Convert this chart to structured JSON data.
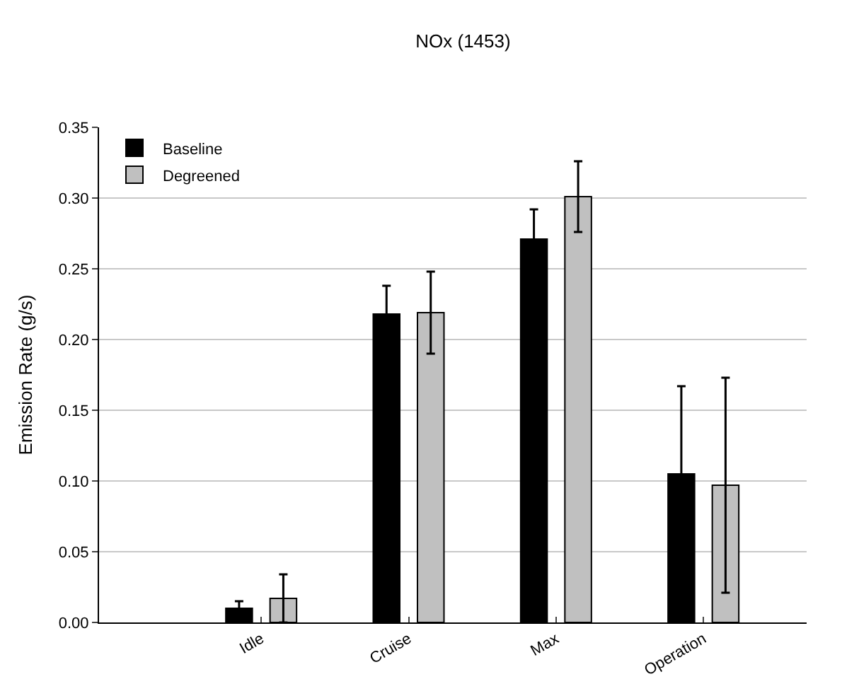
{
  "chart_data": {
    "type": "bar",
    "title": "NOx (1453)",
    "ylabel": "Emission Rate (g/s)",
    "categories": [
      "Idle",
      "Cruise",
      "Max",
      "Operation"
    ],
    "series": [
      {
        "name": "Baseline",
        "color": "#000000",
        "values": [
          0.01,
          0.218,
          0.271,
          0.105
        ],
        "errors": [
          0.005,
          0.02,
          0.021,
          0.062
        ]
      },
      {
        "name": "Degreened",
        "color": "#c0c0c0",
        "values": [
          0.017,
          0.219,
          0.301,
          0.097
        ],
        "errors": [
          0.017,
          0.029,
          0.025,
          0.076
        ]
      }
    ],
    "ylim": [
      0,
      0.35
    ],
    "yticks": [
      {
        "value": 0,
        "label": "0.00"
      },
      {
        "value": 0.05,
        "label": "0.05"
      },
      {
        "value": 0.1,
        "label": "0.10"
      },
      {
        "value": 0.15,
        "label": "0.15"
      },
      {
        "value": 0.2,
        "label": "0.20"
      },
      {
        "value": 0.25,
        "label": "0.25"
      },
      {
        "value": 0.3,
        "label": "0.30"
      },
      {
        "value": 0.35,
        "label": "0.35"
      }
    ],
    "grid": "y",
    "legend": "top left"
  }
}
